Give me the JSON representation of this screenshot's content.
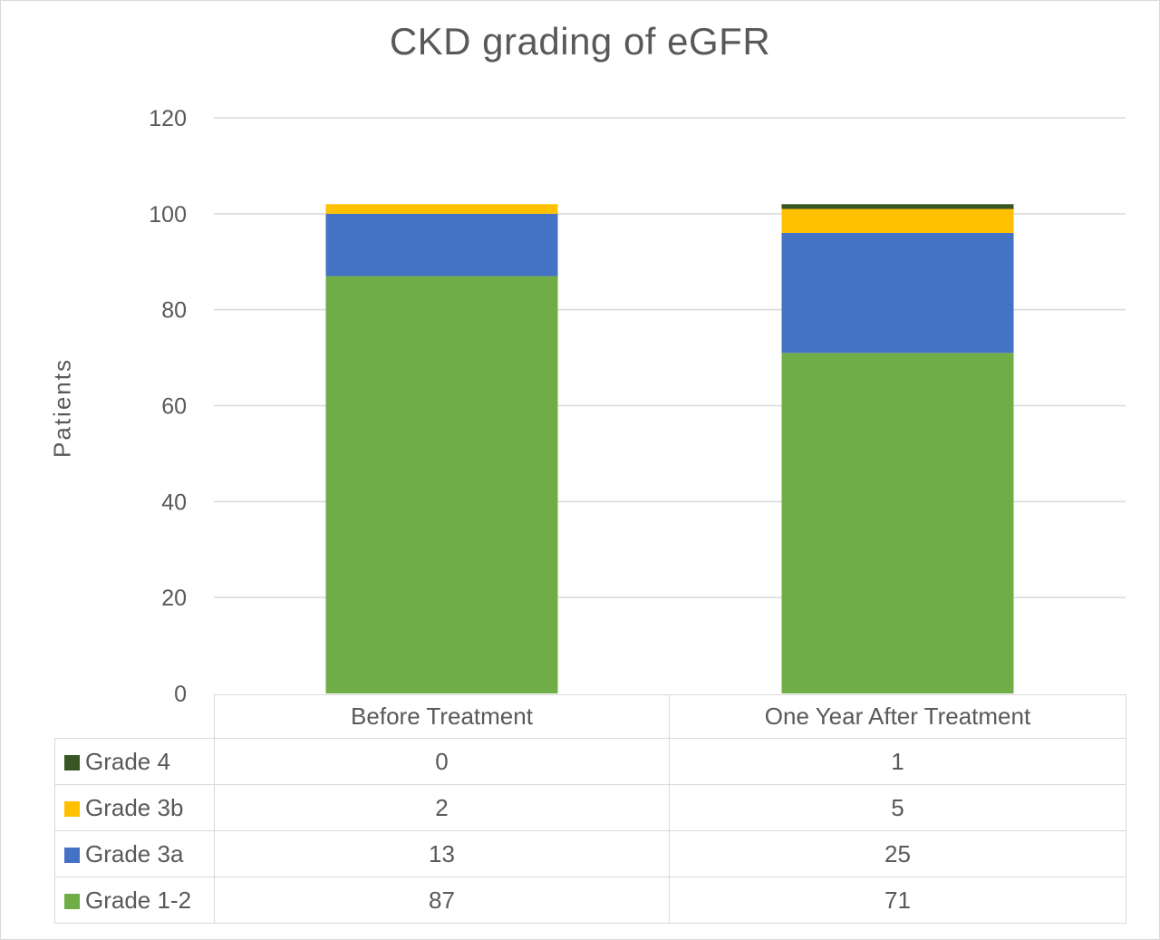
{
  "chart_data": {
    "type": "bar",
    "stacked": true,
    "title": "CKD grading of eGFR",
    "xlabel": "",
    "ylabel": "Patients",
    "ylim": [
      0,
      120
    ],
    "yticks": [
      0,
      20,
      40,
      60,
      80,
      100,
      120
    ],
    "grid": true,
    "legend": "data-table",
    "categories": [
      "Before Treatment",
      "One Year After Treatment"
    ],
    "series": [
      {
        "name": "Grade 4",
        "values": [
          0,
          1
        ],
        "color": "#375623"
      },
      {
        "name": "Grade 3b",
        "values": [
          2,
          5
        ],
        "color": "#ffc000"
      },
      {
        "name": "Grade 3a",
        "values": [
          13,
          25
        ],
        "color": "#4472c4"
      },
      {
        "name": "Grade 1-2",
        "values": [
          87,
          71
        ],
        "color": "#70ad47"
      }
    ]
  }
}
